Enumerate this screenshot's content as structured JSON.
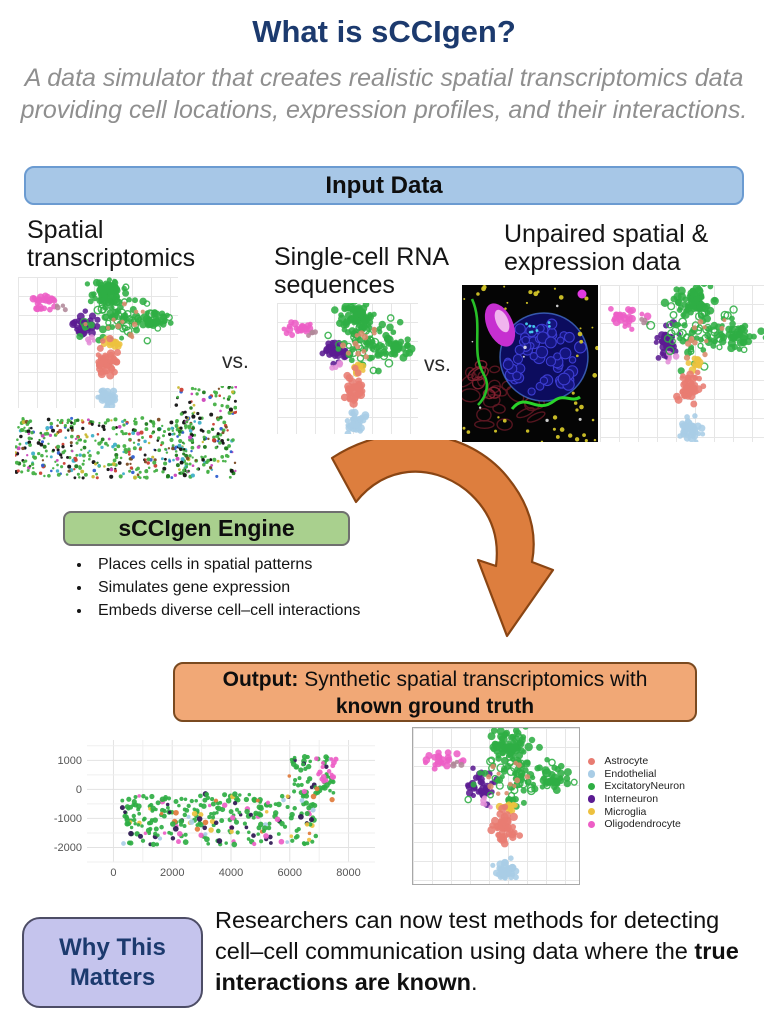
{
  "title": "What is sCCIgen?",
  "subtitle": {
    "line1": "A data simulator that creates realistic spatial transcriptomics data",
    "line2": "providing cell locations, expression profiles, and their interactions."
  },
  "input_section": {
    "banner": "Input Data",
    "items": [
      {
        "label": "Spatial transcriptomics"
      },
      {
        "label": "Single-cell RNA sequences"
      },
      {
        "label": "Unpaired spatial & expression data"
      }
    ],
    "vs1": "vs.",
    "vs2": "vs."
  },
  "engine": {
    "banner": "sCCIgen Engine",
    "bullets": [
      "Places cells in spatial patterns",
      "Simulates gene expression",
      "Embeds diverse cell–cell interactions"
    ]
  },
  "output": {
    "banner_prefix": "Output:",
    "banner_line1_rest": " Synthetic spatial transcriptomics with",
    "banner_line2_bold": "known ground truth"
  },
  "why": {
    "box_label": "Why This Matters",
    "text_part1": "Researchers can now test methods for detecting cell–cell communication using data where the ",
    "text_bold": "true interactions are known",
    "text_part2": "."
  },
  "icons": {
    "curved_arrow": "orange-curved-arrow-down-right",
    "microscopy": "fluorescence-tissue-image"
  },
  "colors": {
    "title_navy": "#1c3a6e",
    "input_banner_fill": "#a7c7e7",
    "engine_banner_fill": "#a9d08e",
    "output_banner_fill": "#f1a876",
    "why_box_fill": "#c5c4ed",
    "arrow_orange": "#dd7e3e"
  },
  "chart_data": [
    {
      "id": "umap",
      "type": "scatter",
      "title": "UMAP of brain cell types (shown for spatial input, scRNA input, unpaired input, and synthetic output)",
      "legend_position": "right of output UMAP",
      "grid": true,
      "legend": [
        {
          "name": "Astrocyte",
          "color": "#e87c72"
        },
        {
          "name": "Endothelial",
          "color": "#a9cde6"
        },
        {
          "name": "ExcitatoryNeuron",
          "color": "#2fae44"
        },
        {
          "name": "Interneuron",
          "color": "#5b1b92"
        },
        {
          "name": "Microglia",
          "color": "#edc13f"
        },
        {
          "name": "Oligodendrocyte",
          "color": "#ed5ec6"
        }
      ],
      "clusters": [
        {
          "name": "Oligodendrocyte",
          "color": "#ed5ec6",
          "cx": 0.16,
          "cy": 0.2,
          "sx": 0.055,
          "sy": 0.03,
          "n": 24,
          "r": 3.2
        },
        {
          "name": "Oligodendrocyte-outlier",
          "color": "#b08898",
          "cx": 0.27,
          "cy": 0.23,
          "sx": 0.015,
          "sy": 0.012,
          "n": 4,
          "r": 2.6
        },
        {
          "name": "Interneuron",
          "color": "#5b1b92",
          "cx": 0.41,
          "cy": 0.37,
          "sx": 0.038,
          "sy": 0.045,
          "n": 40,
          "r": 3.2
        },
        {
          "name": "Interneuron-halo",
          "color": "#e48fd8",
          "cx": 0.44,
          "cy": 0.47,
          "sx": 0.025,
          "sy": 0.02,
          "n": 5,
          "r": 2.8
        },
        {
          "name": "ExcitatoryNeuron-top",
          "color": "#2fae44",
          "cx": 0.57,
          "cy": 0.11,
          "sx": 0.055,
          "sy": 0.05,
          "n": 70,
          "r": 3.4
        },
        {
          "name": "ExcitatoryNeuron-mid",
          "color": "#2fae44",
          "cx": 0.63,
          "cy": 0.3,
          "sx": 0.11,
          "sy": 0.09,
          "n": 80,
          "r": 3.2,
          "ring": 0.45
        },
        {
          "name": "ExcitatoryNeuron-right",
          "color": "#2fae44",
          "cx": 0.85,
          "cy": 0.33,
          "sx": 0.045,
          "sy": 0.04,
          "n": 30,
          "r": 3.4
        },
        {
          "name": "mixed-warm",
          "color": "#d88a6a",
          "cx": 0.62,
          "cy": 0.33,
          "sx": 0.09,
          "sy": 0.07,
          "n": 12,
          "r": 2.6
        },
        {
          "name": "Microglia",
          "color": "#edc13f",
          "cx": 0.585,
          "cy": 0.5,
          "sx": 0.02,
          "sy": 0.022,
          "n": 11,
          "r": 3.2
        },
        {
          "name": "Astrocyte",
          "color": "#e87c72",
          "cx": 0.55,
          "cy": 0.655,
          "sx": 0.032,
          "sy": 0.055,
          "n": 45,
          "r": 3.4
        },
        {
          "name": "Endothelial",
          "color": "#a9cde6",
          "cx": 0.555,
          "cy": 0.92,
          "sx": 0.028,
          "sy": 0.033,
          "n": 40,
          "r": 3.2
        }
      ]
    },
    {
      "id": "input-spatial",
      "type": "scatter",
      "title": "Input spatial cell map (no axes)",
      "dot_r": 1.6,
      "regions": [
        {
          "x0": 0.0,
          "x1": 0.8,
          "y0": 0.34,
          "y1": 0.98,
          "n": 430
        },
        {
          "x0": 0.72,
          "x1": 1.0,
          "y0": 0.0,
          "y1": 0.98,
          "n": 170
        }
      ],
      "colors": [
        {
          "color": "#44b044",
          "w": 0.46
        },
        {
          "color": "#1f7a1f",
          "w": 0.08
        },
        {
          "color": "#111111",
          "w": 0.12
        },
        {
          "color": "#3fb0c8",
          "w": 0.08
        },
        {
          "color": "#2f5fd0",
          "w": 0.05
        },
        {
          "color": "#cc3f33",
          "w": 0.08
        },
        {
          "color": "#c8b832",
          "w": 0.05
        },
        {
          "color": "#cc44bb",
          "w": 0.04
        },
        {
          "color": "#7a4a22",
          "w": 0.04
        }
      ]
    },
    {
      "id": "output-spatial",
      "type": "scatter",
      "title": "Synthetic spatial map (output)",
      "xticks": [
        0,
        2000,
        4000,
        6000,
        8000
      ],
      "yticks": [
        1000,
        0,
        -1000,
        -2000
      ],
      "xlim": [
        -900,
        8900
      ],
      "ylim": [
        -2500,
        1700
      ],
      "grid": true,
      "dot_r": 2.3,
      "regions": [
        {
          "x0": 300,
          "x1": 6900,
          "y0": -1900,
          "y1": -150,
          "n": 300
        },
        {
          "x0": 5900,
          "x1": 7500,
          "y0": -400,
          "y1": 1150,
          "n": 62
        },
        {
          "x0": 6900,
          "x1": 7600,
          "y0": 250,
          "y1": 1100,
          "n": 16,
          "color": "#ed5ec6"
        }
      ],
      "colors": [
        {
          "color": "#2fae44",
          "w": 0.7
        },
        {
          "color": "#2d1650",
          "w": 0.1
        },
        {
          "color": "#ed5ec6",
          "w": 0.06
        },
        {
          "color": "#edc13f",
          "w": 0.06
        },
        {
          "color": "#e0793a",
          "w": 0.04
        },
        {
          "color": "#a9cde6",
          "w": 0.04
        }
      ]
    }
  ]
}
